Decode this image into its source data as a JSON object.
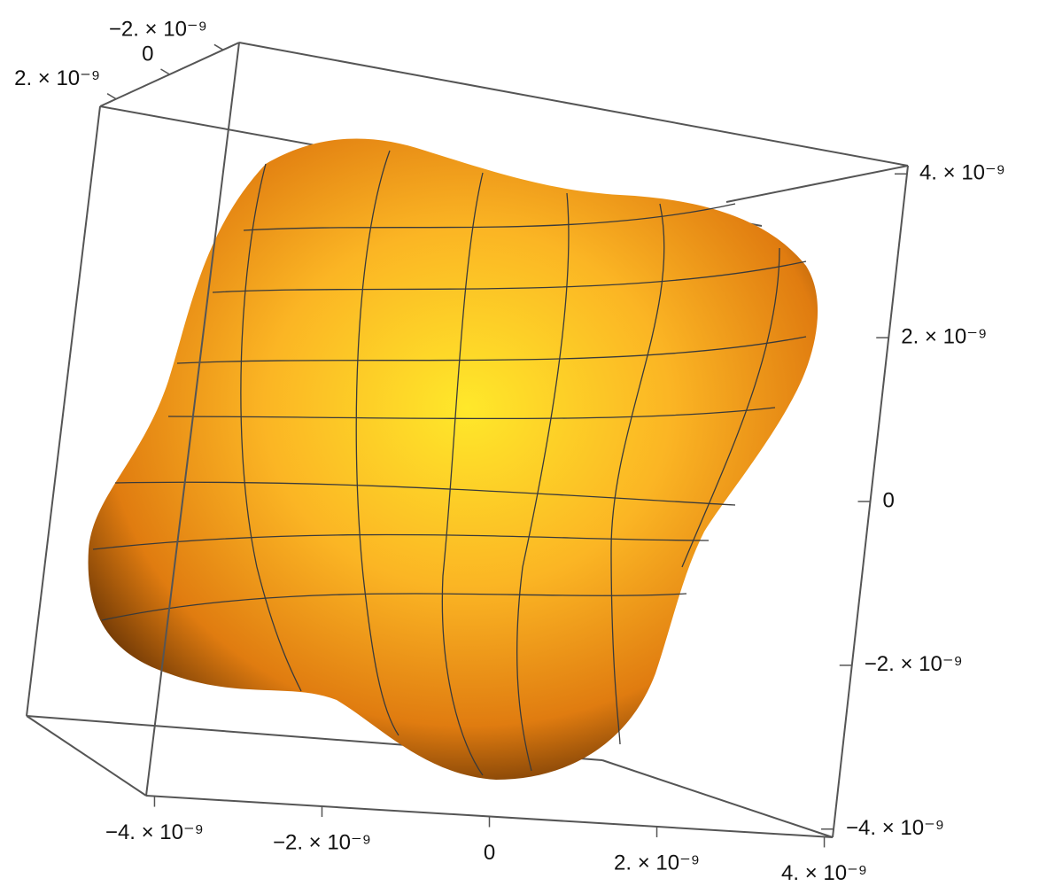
{
  "chart_data": {
    "type": "surface3d",
    "xlim": [
      -4.1e-09,
      4.1e-09
    ],
    "xticks": [
      {
        "value": -4e-09,
        "label": "−4. × 10⁻⁹"
      },
      {
        "value": -2e-09,
        "label": "−2. × 10⁻⁹"
      },
      0,
      {
        "value": 2e-09,
        "label": "2. × 10⁻⁹"
      },
      {
        "value": 4e-09,
        "label": "4. × 10⁻⁹"
      }
    ],
    "ylim": [
      2.6e-09,
      -2.6e-09
    ],
    "yticks": [
      {
        "value": -2e-09,
        "label": "−2. × 10⁻⁹"
      },
      0,
      {
        "value": 2e-09,
        "label": "2. × 10⁻⁹"
      }
    ],
    "zlim": [
      -4.1e-09,
      4.1e-09
    ],
    "zticks": [
      {
        "value": -4e-09,
        "label": "−4. × 10⁻⁹"
      },
      {
        "value": -2e-09,
        "label": "−2. × 10⁻⁹"
      },
      0,
      {
        "value": 2e-09,
        "label": "2. × 10⁻⁹"
      },
      {
        "value": 4e-09,
        "label": "4. × 10⁻⁹"
      }
    ],
    "color": "#f7a21b"
  }
}
